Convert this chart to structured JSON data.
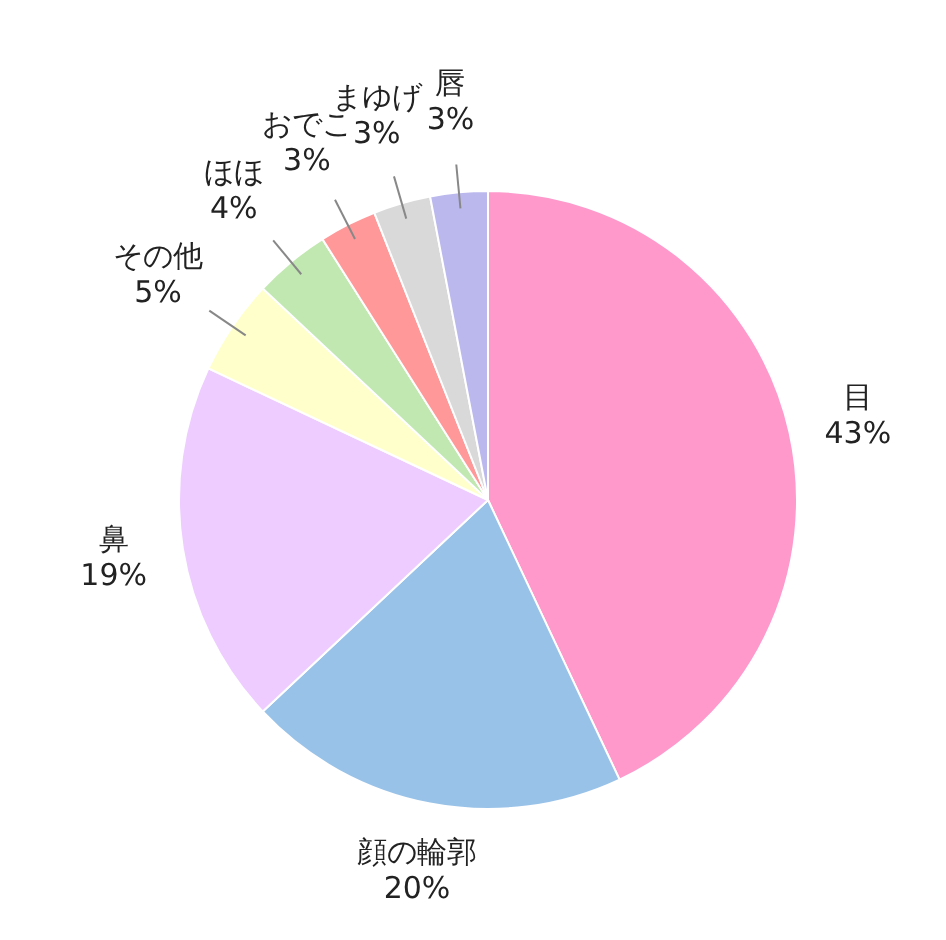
{
  "chart_data": {
    "type": "pie",
    "categories": [
      "目",
      "顔の輪郭",
      "鼻",
      "その他",
      "ほほ",
      "おでこ",
      "まゆげ",
      "唇"
    ],
    "values": [
      43,
      20,
      19,
      5,
      4,
      3,
      3,
      3
    ],
    "value_labels": [
      "43%",
      "20%",
      "19%",
      "5%",
      "4%",
      "3%",
      "3%",
      "3%"
    ],
    "colors": [
      "#ff99cc",
      "#99c2e8",
      "#eeccff",
      "#ffffcc",
      "#c0e8b0",
      "#ff9999",
      "#d9d9d9",
      "#bbb8ee"
    ],
    "legend": false
  }
}
